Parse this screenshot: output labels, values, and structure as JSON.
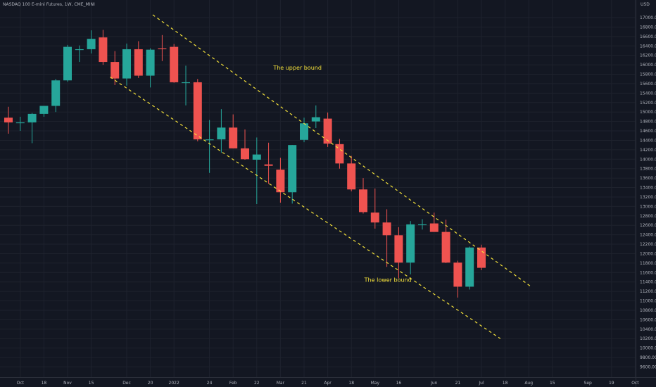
{
  "header": {
    "title": "NASDAQ 100 E-mini Futures, 1W, CME_MINI",
    "currency": "USD"
  },
  "colors": {
    "background": "#131722",
    "up": "#26a69a",
    "down": "#ef5350",
    "grid": "#1e222d",
    "axis_text": "#b2b5be",
    "channel": "#f5e23b",
    "annotation": "#f5e23b"
  },
  "chart_data": {
    "type": "candlestick",
    "title": "NASDAQ 100 E-mini Futures, 1W, CME_MINI",
    "ylabel": "USD",
    "ylim": [
      9500,
      17700
    ],
    "grid": true,
    "y_ticks": [
      9600,
      9800,
      10000,
      10200,
      10400,
      10600,
      10800,
      11000,
      11200,
      11400,
      11600,
      11800,
      12000,
      12200,
      12400,
      12600,
      12800,
      13000,
      13200,
      13400,
      13600,
      13800,
      14000,
      14200,
      14400,
      14600,
      14800,
      15000,
      15200,
      15400,
      15600,
      15800,
      16000,
      16200,
      16400,
      16600,
      16800,
      17000
    ],
    "x_ticks": [
      {
        "label": "Oct",
        "week": 1
      },
      {
        "label": "18",
        "week": 3
      },
      {
        "label": "Nov",
        "week": 5
      },
      {
        "label": "15",
        "week": 7
      },
      {
        "label": "Dec",
        "week": 10
      },
      {
        "label": "20",
        "week": 12
      },
      {
        "label": "2022",
        "week": 14
      },
      {
        "label": "24",
        "week": 17
      },
      {
        "label": "Feb",
        "week": 19
      },
      {
        "label": "22",
        "week": 21
      },
      {
        "label": "Mar",
        "week": 23
      },
      {
        "label": "21",
        "week": 25
      },
      {
        "label": "Apr",
        "week": 27
      },
      {
        "label": "18",
        "week": 29
      },
      {
        "label": "May",
        "week": 31
      },
      {
        "label": "16",
        "week": 33
      },
      {
        "label": "Jun",
        "week": 36
      },
      {
        "label": "21",
        "week": 38
      },
      {
        "label": "Jul",
        "week": 40
      },
      {
        "label": "18",
        "week": 42
      },
      {
        "label": "Aug",
        "week": 44
      },
      {
        "label": "15",
        "week": 46
      },
      {
        "label": "Sep",
        "week": 49
      },
      {
        "label": "19",
        "week": 51
      },
      {
        "label": "Oct",
        "week": 53
      }
    ],
    "candles": [
      {
        "o": 14880,
        "h": 15110,
        "l": 14540,
        "c": 14780
      },
      {
        "o": 14780,
        "h": 14900,
        "l": 14600,
        "c": 14780
      },
      {
        "o": 14780,
        "h": 14980,
        "l": 14340,
        "c": 14960
      },
      {
        "o": 14960,
        "h": 15130,
        "l": 14900,
        "c": 15130
      },
      {
        "o": 15130,
        "h": 15700,
        "l": 15000,
        "c": 15670
      },
      {
        "o": 15670,
        "h": 16420,
        "l": 15640,
        "c": 16380
      },
      {
        "o": 16330,
        "h": 16410,
        "l": 16060,
        "c": 16330
      },
      {
        "o": 16330,
        "h": 16730,
        "l": 16240,
        "c": 16550
      },
      {
        "o": 16580,
        "h": 16740,
        "l": 16000,
        "c": 16060
      },
      {
        "o": 16060,
        "h": 16290,
        "l": 15570,
        "c": 15710
      },
      {
        "o": 15710,
        "h": 16450,
        "l": 15560,
        "c": 16330
      },
      {
        "o": 16330,
        "h": 16500,
        "l": 15720,
        "c": 15770
      },
      {
        "o": 15770,
        "h": 16350,
        "l": 15520,
        "c": 16320
      },
      {
        "o": 16350,
        "h": 16630,
        "l": 16080,
        "c": 16340
      },
      {
        "o": 16380,
        "h": 16440,
        "l": 15620,
        "c": 15630
      },
      {
        "o": 15630,
        "h": 15980,
        "l": 15140,
        "c": 15630
      },
      {
        "o": 15630,
        "h": 15700,
        "l": 14380,
        "c": 14420
      },
      {
        "o": 14420,
        "h": 14830,
        "l": 13710,
        "c": 14420
      },
      {
        "o": 14420,
        "h": 15060,
        "l": 14140,
        "c": 14670
      },
      {
        "o": 14670,
        "h": 14950,
        "l": 14230,
        "c": 14230
      },
      {
        "o": 14230,
        "h": 14630,
        "l": 13990,
        "c": 14000
      },
      {
        "o": 13990,
        "h": 14460,
        "l": 13050,
        "c": 14100
      },
      {
        "o": 13890,
        "h": 14350,
        "l": 13480,
        "c": 13860
      },
      {
        "o": 13780,
        "h": 14030,
        "l": 13080,
        "c": 13300
      },
      {
        "o": 13300,
        "h": 14300,
        "l": 13060,
        "c": 14300
      },
      {
        "o": 14410,
        "h": 14880,
        "l": 14360,
        "c": 14760
      },
      {
        "o": 14800,
        "h": 15140,
        "l": 14660,
        "c": 14890
      },
      {
        "o": 14860,
        "h": 14990,
        "l": 14260,
        "c": 14330
      },
      {
        "o": 14320,
        "h": 14430,
        "l": 13800,
        "c": 13910
      },
      {
        "o": 13910,
        "h": 14070,
        "l": 13320,
        "c": 13360
      },
      {
        "o": 13360,
        "h": 13600,
        "l": 12850,
        "c": 12880
      },
      {
        "o": 12870,
        "h": 13380,
        "l": 12530,
        "c": 12660
      },
      {
        "o": 12660,
        "h": 12940,
        "l": 11720,
        "c": 12390
      },
      {
        "o": 12390,
        "h": 12560,
        "l": 11480,
        "c": 11810
      },
      {
        "o": 11810,
        "h": 12690,
        "l": 11560,
        "c": 12620
      },
      {
        "o": 12620,
        "h": 12730,
        "l": 12510,
        "c": 12620
      },
      {
        "o": 12640,
        "h": 12870,
        "l": 12460,
        "c": 12460
      },
      {
        "o": 12460,
        "h": 12720,
        "l": 11800,
        "c": 11810
      },
      {
        "o": 11810,
        "h": 11850,
        "l": 11070,
        "c": 11300
      },
      {
        "o": 11300,
        "h": 12150,
        "l": 11240,
        "c": 12130
      },
      {
        "o": 12130,
        "h": 12190,
        "l": 11650,
        "c": 11700
      }
    ],
    "channel": {
      "upper_bound": [
        {
          "week": 12.2,
          "price": 17060
        },
        {
          "week": 44.2,
          "price": 11300
        }
      ],
      "lower_bound": [
        {
          "week": 8.6,
          "price": 15740
        },
        {
          "week": 41.6,
          "price": 10200
        }
      ]
    },
    "annotations": [
      {
        "text": "The upper bound",
        "week": 22.4,
        "price": 15900
      },
      {
        "text": "The lower bound",
        "week": 30.1,
        "price": 11400
      }
    ]
  }
}
